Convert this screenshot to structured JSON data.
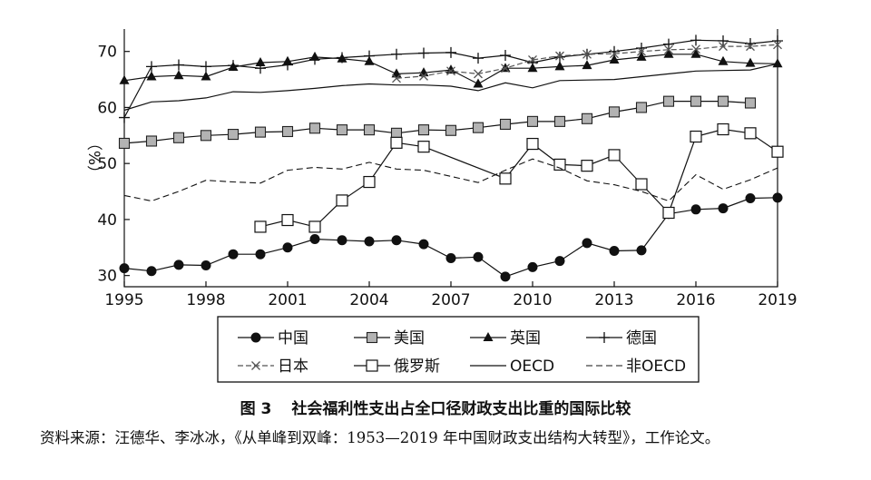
{
  "figure": {
    "number": "图 3",
    "title": "社会福利性支出占全口径财政支出比重的国际比较",
    "source": "资料来源：汪德华、李冰冰，《从单峰到双峰：1953—2019 年中国财政支出结构大转型》，工作论文。"
  },
  "chart_data": {
    "type": "line",
    "ylabel": "（%）",
    "xlabel": "",
    "xlim": [
      1995,
      2019
    ],
    "ylim": [
      28,
      74
    ],
    "xticks": [
      "1995",
      "1998",
      "2001",
      "2004",
      "2007",
      "2010",
      "2013",
      "2016",
      "2019"
    ],
    "yticks": [
      "30",
      "40",
      "50",
      "60",
      "70"
    ],
    "grid": false,
    "legend_placement": "bottom",
    "series": [
      {
        "name": "中国",
        "marker": "filled-circle",
        "dash": "solid",
        "x": [
          1995,
          1996,
          1997,
          1998,
          1999,
          2000,
          2001,
          2002,
          2003,
          2004,
          2005,
          2006,
          2007,
          2008,
          2009,
          2010,
          2011,
          2012,
          2013,
          2014,
          2015,
          2016,
          2017,
          2018,
          2019
        ],
        "y": [
          31.3,
          30.8,
          31.9,
          31.8,
          33.8,
          33.8,
          35.0,
          36.5,
          36.3,
          36.1,
          36.3,
          35.6,
          33.1,
          33.3,
          29.8,
          31.5,
          32.6,
          35.8,
          34.4,
          34.5,
          41.0,
          41.8,
          42.0,
          43.8,
          43.9
        ]
      },
      {
        "name": "美国",
        "marker": "grey-square",
        "dash": "solid",
        "x": [
          1995,
          1996,
          1997,
          1998,
          1999,
          2000,
          2001,
          2002,
          2003,
          2004,
          2005,
          2006,
          2007,
          2008,
          2009,
          2010,
          2011,
          2012,
          2013,
          2014,
          2015,
          2016,
          2017,
          2018
        ],
        "y": [
          53.6,
          54.0,
          54.6,
          55.0,
          55.2,
          55.6,
          55.7,
          56.3,
          56.0,
          56.0,
          55.4,
          56.0,
          55.9,
          56.4,
          57.0,
          57.5,
          57.5,
          58.0,
          59.2,
          60.0,
          61.1,
          61.1,
          61.1,
          60.8
        ]
      },
      {
        "name": "英国",
        "marker": "filled-triangle",
        "dash": "solid",
        "x": [
          1995,
          1996,
          1997,
          1998,
          1999,
          2000,
          2001,
          2002,
          2003,
          2004,
          2005,
          2006,
          2007,
          2008,
          2009,
          2010,
          2011,
          2012,
          2013,
          2014,
          2015,
          2016,
          2017,
          2018,
          2019
        ],
        "y": [
          64.8,
          65.5,
          65.7,
          65.5,
          67.2,
          68.0,
          68.2,
          69.0,
          68.7,
          68.2,
          66.0,
          66.2,
          66.7,
          64.2,
          67.0,
          67.0,
          67.3,
          67.5,
          68.5,
          69.0,
          69.5,
          69.5,
          68.2,
          67.9,
          67.8
        ]
      },
      {
        "name": "德国",
        "marker": "plus",
        "dash": "solid",
        "x": [
          1995,
          1996,
          1997,
          1998,
          1999,
          2000,
          2001,
          2002,
          2003,
          2004,
          2005,
          2006,
          2007,
          2008,
          2009,
          2010,
          2011,
          2012,
          2013,
          2014,
          2015,
          2016,
          2017,
          2018,
          2019
        ],
        "y": [
          58.2,
          67.3,
          67.6,
          67.3,
          67.5,
          67.0,
          67.6,
          68.6,
          68.9,
          69.2,
          69.5,
          69.7,
          69.8,
          68.8,
          69.3,
          68.0,
          69.0,
          69.5,
          70.0,
          70.6,
          71.3,
          72.0,
          71.9,
          71.4,
          71.9
        ]
      },
      {
        "name": "日本",
        "marker": "cross",
        "dash": "dashed",
        "x": [
          2005,
          2006,
          2007,
          2008,
          2009,
          2010,
          2011,
          2012,
          2013,
          2014,
          2015,
          2016,
          2017,
          2018,
          2019
        ],
        "y": [
          65.2,
          65.6,
          66.5,
          66.0,
          67.0,
          68.5,
          69.2,
          69.5,
          69.6,
          70.0,
          70.3,
          70.4,
          70.9,
          70.9,
          71.2
        ]
      },
      {
        "name": "俄罗斯",
        "marker": "open-square",
        "dash": "solid",
        "x": [
          2000,
          2001,
          2002,
          2003,
          2004,
          2005,
          2006,
          2009,
          2010,
          2011,
          2012,
          2013,
          2014,
          2015,
          2016,
          2017,
          2018,
          2019
        ],
        "y": [
          38.7,
          39.9,
          38.7,
          43.4,
          46.7,
          53.7,
          53.0,
          47.3,
          53.5,
          49.8,
          49.6,
          51.5,
          46.3,
          41.2,
          54.8,
          56.1,
          55.4,
          52.1
        ]
      },
      {
        "name": "OECD",
        "marker": "none",
        "dash": "solid",
        "x": [
          1995,
          1996,
          1997,
          1998,
          1999,
          2000,
          2001,
          2002,
          2003,
          2004,
          2005,
          2006,
          2007,
          2008,
          2009,
          2010,
          2011,
          2012,
          2013,
          2014,
          2015,
          2016,
          2017,
          2018,
          2019
        ],
        "y": [
          59.5,
          61.0,
          61.2,
          61.7,
          62.8,
          62.7,
          63.0,
          63.4,
          63.9,
          64.2,
          64.0,
          64.0,
          63.8,
          63.0,
          64.4,
          63.5,
          64.8,
          64.9,
          65.0,
          65.5,
          66.0,
          66.5,
          66.6,
          66.7,
          67.8
        ]
      },
      {
        "name": "非OECD",
        "marker": "none",
        "dash": "dashed",
        "x": [
          1995,
          1996,
          1997,
          1998,
          1999,
          2000,
          2001,
          2002,
          2003,
          2004,
          2005,
          2006,
          2007,
          2008,
          2009,
          2010,
          2011,
          2012,
          2013,
          2014,
          2015,
          2016,
          2017,
          2018,
          2019
        ],
        "y": [
          44.3,
          43.3,
          45.0,
          47.0,
          46.7,
          46.5,
          48.8,
          49.3,
          49.0,
          50.2,
          49.0,
          48.8,
          47.7,
          46.6,
          48.8,
          50.8,
          49.2,
          46.9,
          46.2,
          45.0,
          43.3,
          48.0,
          45.4,
          47.1,
          49.2
        ]
      }
    ]
  }
}
